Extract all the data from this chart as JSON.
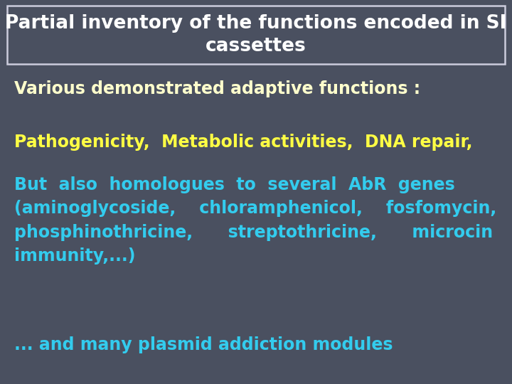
{
  "bg_color": "#4a5060",
  "title_text": "Partial inventory of the functions encoded in SI\ncassettes",
  "title_color": "#ffffff",
  "title_box_edge_color": "#ccccdd",
  "line1_text": "Various demonstrated adaptive functions :",
  "line1_color": "#ffffcc",
  "line2_text": "Pathogenicity,  Metabolic activities,  DNA repair,",
  "line2_color": "#ffff44",
  "line3_text": "But  also  homologues  to  several  AbR  genes\n(aminoglycoside,    chloramphenicol,    fosfomycin,\nphosphinothricine,      streptothricine,      microcin\nimmunity,...)",
  "line3_color": "#33ccee",
  "line4_text": "... and many plasmid addiction modules",
  "line4_color": "#33ccee",
  "title_fontsize": 19,
  "line1_fontsize": 17,
  "body_fontsize": 17,
  "figwidth": 7.2,
  "figheight": 5.4,
  "dpi": 100
}
